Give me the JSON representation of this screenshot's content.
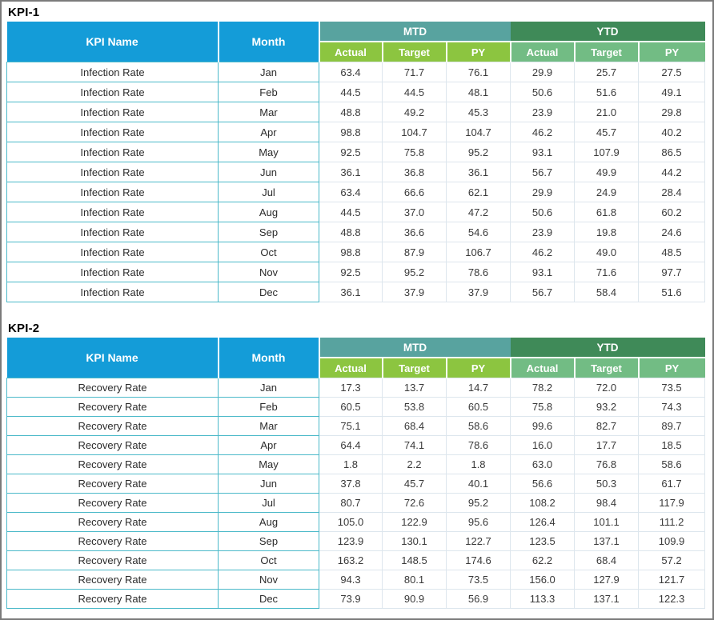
{
  "colors": {
    "header_blue": "#149cd8",
    "band_mtd_teal": "#58a39f",
    "band_ytd_green": "#3f8a58",
    "sub_mtd_green": "#8cc540",
    "sub_ytd_green": "#72bc84",
    "border_teal": "#4bb9c9",
    "border_light": "#dde6ed",
    "frame_gray": "#7b7b7b"
  },
  "tables": [
    {
      "title": "KPI-1",
      "kpi_name": "Infection Rate",
      "headers": {
        "kpi_name": "KPI Name",
        "month": "Month",
        "mtd": "MTD",
        "ytd": "YTD",
        "sub": [
          "Actual",
          "Target",
          "PY",
          "Actual",
          "Target",
          "PY"
        ]
      },
      "rows": [
        {
          "month": "Jan",
          "values": [
            "63.4",
            "71.7",
            "76.1",
            "29.9",
            "25.7",
            "27.5"
          ]
        },
        {
          "month": "Feb",
          "values": [
            "44.5",
            "44.5",
            "48.1",
            "50.6",
            "51.6",
            "49.1"
          ]
        },
        {
          "month": "Mar",
          "values": [
            "48.8",
            "49.2",
            "45.3",
            "23.9",
            "21.0",
            "29.8"
          ]
        },
        {
          "month": "Apr",
          "values": [
            "98.8",
            "104.7",
            "104.7",
            "46.2",
            "45.7",
            "40.2"
          ]
        },
        {
          "month": "May",
          "values": [
            "92.5",
            "75.8",
            "95.2",
            "93.1",
            "107.9",
            "86.5"
          ]
        },
        {
          "month": "Jun",
          "values": [
            "36.1",
            "36.8",
            "36.1",
            "56.7",
            "49.9",
            "44.2"
          ]
        },
        {
          "month": "Jul",
          "values": [
            "63.4",
            "66.6",
            "62.1",
            "29.9",
            "24.9",
            "28.4"
          ]
        },
        {
          "month": "Aug",
          "values": [
            "44.5",
            "37.0",
            "47.2",
            "50.6",
            "61.8",
            "60.2"
          ]
        },
        {
          "month": "Sep",
          "values": [
            "48.8",
            "36.6",
            "54.6",
            "23.9",
            "19.8",
            "24.6"
          ]
        },
        {
          "month": "Oct",
          "values": [
            "98.8",
            "87.9",
            "106.7",
            "46.2",
            "49.0",
            "48.5"
          ]
        },
        {
          "month": "Nov",
          "values": [
            "92.5",
            "95.2",
            "78.6",
            "93.1",
            "71.6",
            "97.7"
          ]
        },
        {
          "month": "Dec",
          "values": [
            "36.1",
            "37.9",
            "37.9",
            "56.7",
            "58.4",
            "51.6"
          ]
        }
      ]
    },
    {
      "title": "KPI-2",
      "kpi_name": "Recovery Rate",
      "headers": {
        "kpi_name": "KPI Name",
        "month": "Month",
        "mtd": "MTD",
        "ytd": "YTD",
        "sub": [
          "Actual",
          "Target",
          "PY",
          "Actual",
          "Target",
          "PY"
        ]
      },
      "rows": [
        {
          "month": "Jan",
          "values": [
            "17.3",
            "13.7",
            "14.7",
            "78.2",
            "72.0",
            "73.5"
          ]
        },
        {
          "month": "Feb",
          "values": [
            "60.5",
            "53.8",
            "60.5",
            "75.8",
            "93.2",
            "74.3"
          ]
        },
        {
          "month": "Mar",
          "values": [
            "75.1",
            "68.4",
            "58.6",
            "99.6",
            "82.7",
            "89.7"
          ]
        },
        {
          "month": "Apr",
          "values": [
            "64.4",
            "74.1",
            "78.6",
            "16.0",
            "17.7",
            "18.5"
          ]
        },
        {
          "month": "May",
          "values": [
            "1.8",
            "2.2",
            "1.8",
            "63.0",
            "76.8",
            "58.6"
          ]
        },
        {
          "month": "Jun",
          "values": [
            "37.8",
            "45.7",
            "40.1",
            "56.6",
            "50.3",
            "61.7"
          ]
        },
        {
          "month": "Jul",
          "values": [
            "80.7",
            "72.6",
            "95.2",
            "108.2",
            "98.4",
            "117.9"
          ]
        },
        {
          "month": "Aug",
          "values": [
            "105.0",
            "122.9",
            "95.6",
            "126.4",
            "101.1",
            "111.2"
          ]
        },
        {
          "month": "Sep",
          "values": [
            "123.9",
            "130.1",
            "122.7",
            "123.5",
            "137.1",
            "109.9"
          ]
        },
        {
          "month": "Oct",
          "values": [
            "163.2",
            "148.5",
            "174.6",
            "62.2",
            "68.4",
            "57.2"
          ]
        },
        {
          "month": "Nov",
          "values": [
            "94.3",
            "80.1",
            "73.5",
            "156.0",
            "127.9",
            "121.7"
          ]
        },
        {
          "month": "Dec",
          "values": [
            "73.9",
            "90.9",
            "56.9",
            "113.3",
            "137.1",
            "122.3"
          ]
        }
      ]
    }
  ]
}
